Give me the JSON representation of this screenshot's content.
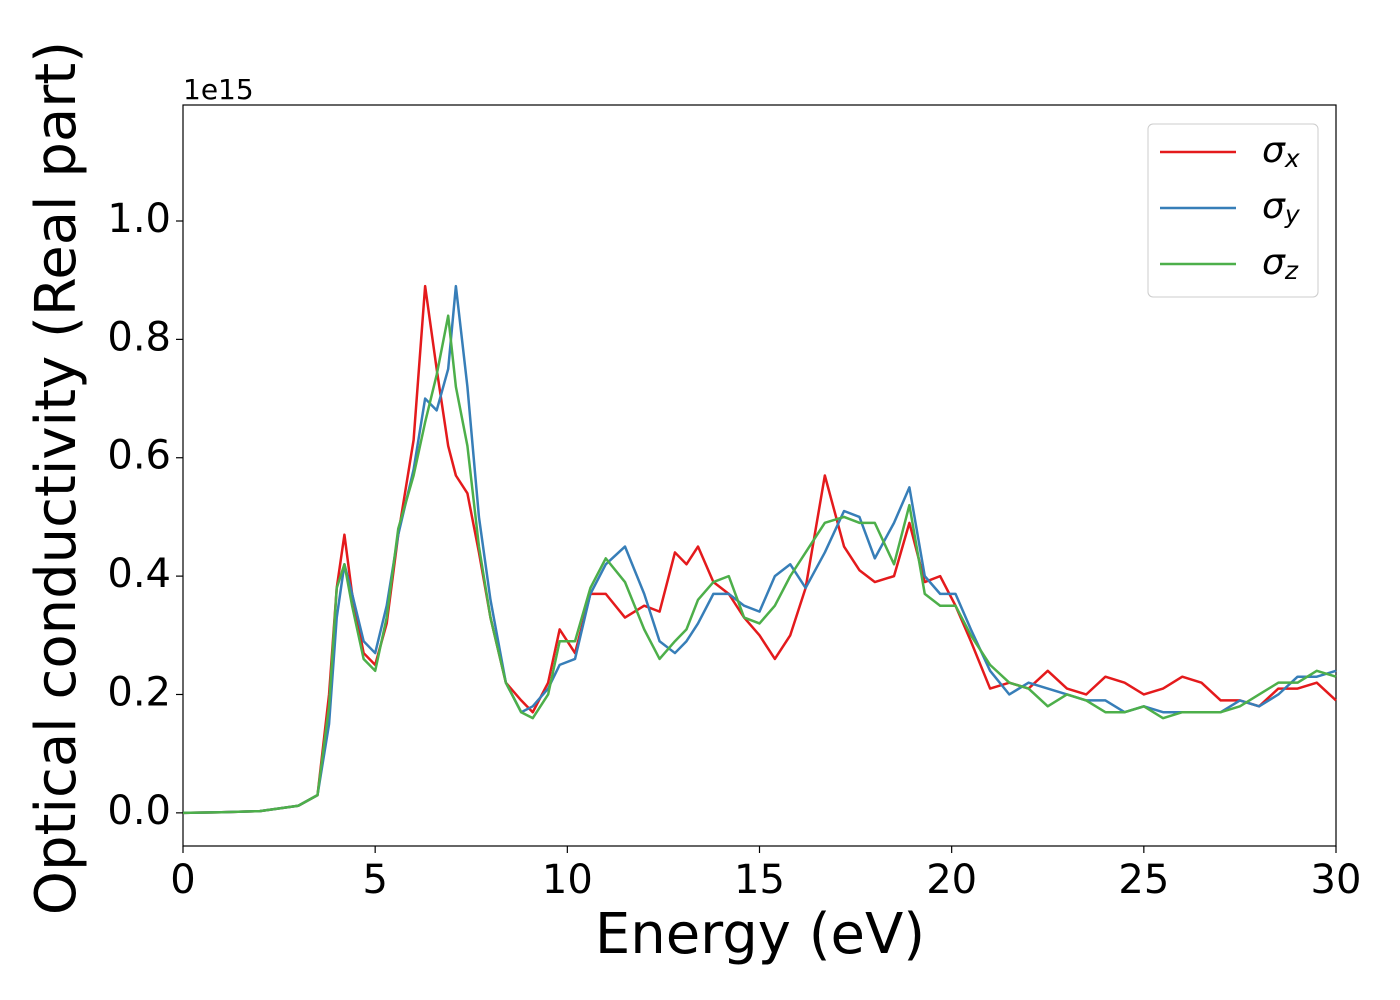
{
  "chart_data": {
    "type": "line",
    "xlabel": "Energy (eV)",
    "ylabel": "Optical conductivity (Real part)",
    "y_offset_label": "1e15",
    "x": [
      0,
      1,
      2,
      3,
      3.5,
      3.8,
      4.0,
      4.2,
      4.4,
      4.7,
      5.0,
      5.3,
      5.6,
      6.0,
      6.3,
      6.6,
      6.9,
      7.1,
      7.4,
      7.7,
      8.0,
      8.4,
      8.8,
      9.1,
      9.5,
      9.8,
      10.2,
      10.6,
      11.0,
      11.5,
      12.0,
      12.4,
      12.8,
      13.1,
      13.4,
      13.8,
      14.2,
      14.6,
      15.0,
      15.4,
      15.8,
      16.2,
      16.7,
      17.2,
      17.6,
      18.0,
      18.5,
      18.9,
      19.3,
      19.7,
      20.1,
      20.5,
      21.0,
      21.5,
      22.0,
      22.5,
      23.0,
      23.5,
      24.0,
      24.5,
      25.0,
      25.5,
      26.0,
      26.5,
      27.0,
      27.5,
      28.0,
      28.5,
      29.0,
      29.5,
      30.0
    ],
    "series": [
      {
        "name": "σx",
        "color": "#e41a1c",
        "values": [
          0,
          0.001,
          0.003,
          0.012,
          0.03,
          0.2,
          0.38,
          0.47,
          0.37,
          0.27,
          0.25,
          0.32,
          0.47,
          0.63,
          0.89,
          0.75,
          0.62,
          0.57,
          0.54,
          0.44,
          0.33,
          0.22,
          0.19,
          0.17,
          0.22,
          0.31,
          0.27,
          0.37,
          0.37,
          0.33,
          0.35,
          0.34,
          0.44,
          0.42,
          0.45,
          0.39,
          0.37,
          0.33,
          0.3,
          0.26,
          0.3,
          0.38,
          0.57,
          0.45,
          0.41,
          0.39,
          0.4,
          0.49,
          0.39,
          0.4,
          0.35,
          0.29,
          0.21,
          0.22,
          0.21,
          0.24,
          0.21,
          0.2,
          0.23,
          0.22,
          0.2,
          0.21,
          0.23,
          0.22,
          0.19,
          0.19,
          0.18,
          0.21,
          0.21,
          0.22,
          0.19
        ]
      },
      {
        "name": "σy",
        "color": "#377eb8",
        "values": [
          0,
          0.001,
          0.003,
          0.012,
          0.03,
          0.15,
          0.33,
          0.42,
          0.37,
          0.29,
          0.27,
          0.35,
          0.47,
          0.58,
          0.7,
          0.68,
          0.75,
          0.89,
          0.72,
          0.5,
          0.36,
          0.22,
          0.17,
          0.18,
          0.21,
          0.25,
          0.26,
          0.37,
          0.42,
          0.45,
          0.37,
          0.29,
          0.27,
          0.29,
          0.32,
          0.37,
          0.37,
          0.35,
          0.34,
          0.4,
          0.42,
          0.38,
          0.44,
          0.51,
          0.5,
          0.43,
          0.49,
          0.55,
          0.4,
          0.37,
          0.37,
          0.31,
          0.24,
          0.2,
          0.22,
          0.21,
          0.2,
          0.19,
          0.19,
          0.17,
          0.18,
          0.17,
          0.17,
          0.17,
          0.17,
          0.19,
          0.18,
          0.2,
          0.23,
          0.23,
          0.24
        ]
      },
      {
        "name": "σz",
        "color": "#4daf4a",
        "values": [
          0,
          0.001,
          0.003,
          0.012,
          0.03,
          0.18,
          0.38,
          0.42,
          0.35,
          0.26,
          0.24,
          0.33,
          0.48,
          0.57,
          0.66,
          0.74,
          0.84,
          0.72,
          0.62,
          0.45,
          0.33,
          0.22,
          0.17,
          0.16,
          0.2,
          0.29,
          0.29,
          0.38,
          0.43,
          0.39,
          0.31,
          0.26,
          0.29,
          0.31,
          0.36,
          0.39,
          0.4,
          0.33,
          0.32,
          0.35,
          0.4,
          0.44,
          0.49,
          0.5,
          0.49,
          0.49,
          0.42,
          0.52,
          0.37,
          0.35,
          0.35,
          0.3,
          0.25,
          0.22,
          0.21,
          0.18,
          0.2,
          0.19,
          0.17,
          0.17,
          0.18,
          0.16,
          0.17,
          0.17,
          0.17,
          0.18,
          0.2,
          0.22,
          0.22,
          0.24,
          0.23
        ]
      }
    ],
    "xlim": [
      0,
      30
    ],
    "xticks": [
      0,
      5,
      10,
      15,
      20,
      25,
      30
    ],
    "ylim": [
      -0.056,
      1.196
    ],
    "yticks": [
      {
        "value": 0,
        "label": "0.0"
      },
      {
        "value": 0.2,
        "label": "0.2"
      },
      {
        "value": 0.4,
        "label": "0.4"
      },
      {
        "value": 0.6,
        "label": "0.6"
      },
      {
        "value": 0.8,
        "label": "0.8"
      },
      {
        "value": 1.0,
        "label": "1.0"
      }
    ],
    "legend": "upper right"
  }
}
